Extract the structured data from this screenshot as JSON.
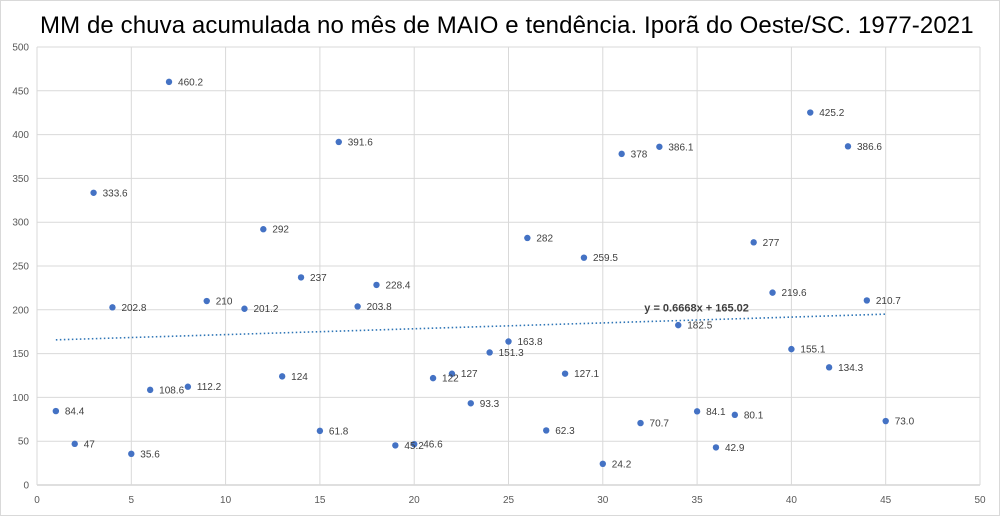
{
  "chart_data": {
    "type": "scatter",
    "title": "MM de chuva acumulada no mês de MAIO e tendência. Iporã do Oeste/SC. 1977-2021",
    "xlabel": "",
    "ylabel": "",
    "xlim": [
      0,
      50
    ],
    "ylim": [
      0,
      500
    ],
    "x_ticks": [
      0,
      5,
      10,
      15,
      20,
      25,
      30,
      35,
      40,
      45,
      50
    ],
    "y_ticks": [
      0,
      50,
      100,
      150,
      200,
      250,
      300,
      350,
      400,
      450,
      500
    ],
    "grid": true,
    "series": [
      {
        "name": "MM de chuva",
        "color": "#4472c4",
        "points": [
          {
            "x": 1,
            "y": 84.4,
            "label": "84.4"
          },
          {
            "x": 2,
            "y": 47,
            "label": "47"
          },
          {
            "x": 3,
            "y": 333.6,
            "label": "333.6"
          },
          {
            "x": 4,
            "y": 202.8,
            "label": "202.8"
          },
          {
            "x": 5,
            "y": 35.6,
            "label": "35.6"
          },
          {
            "x": 6,
            "y": 108.6,
            "label": "108.6"
          },
          {
            "x": 7,
            "y": 460.2,
            "label": "460.2"
          },
          {
            "x": 8,
            "y": 112.2,
            "label": "112.2"
          },
          {
            "x": 9,
            "y": 210,
            "label": "210"
          },
          {
            "x": 11,
            "y": 201.2,
            "label": "201.2"
          },
          {
            "x": 12,
            "y": 292,
            "label": "292"
          },
          {
            "x": 13,
            "y": 124,
            "label": "124"
          },
          {
            "x": 14,
            "y": 237,
            "label": "237"
          },
          {
            "x": 15,
            "y": 61.8,
            "label": "61.8"
          },
          {
            "x": 16,
            "y": 391.6,
            "label": "391.6"
          },
          {
            "x": 17,
            "y": 203.8,
            "label": "203.8"
          },
          {
            "x": 18,
            "y": 228.4,
            "label": "228.4"
          },
          {
            "x": 19,
            "y": 45.2,
            "label": "45.2"
          },
          {
            "x": 20,
            "y": 46.6,
            "label": "46.6"
          },
          {
            "x": 21,
            "y": 122,
            "label": "122"
          },
          {
            "x": 22,
            "y": 127,
            "label": "127"
          },
          {
            "x": 23,
            "y": 93.3,
            "label": "93.3"
          },
          {
            "x": 24,
            "y": 151.3,
            "label": "151.3"
          },
          {
            "x": 25,
            "y": 163.8,
            "label": "163.8"
          },
          {
            "x": 26,
            "y": 282,
            "label": "282"
          },
          {
            "x": 27,
            "y": 62.3,
            "label": "62.3"
          },
          {
            "x": 28,
            "y": 127.1,
            "label": "127.1"
          },
          {
            "x": 29,
            "y": 259.5,
            "label": "259.5"
          },
          {
            "x": 30,
            "y": 24.2,
            "label": "24.2"
          },
          {
            "x": 31,
            "y": 378,
            "label": "378"
          },
          {
            "x": 32,
            "y": 70.7,
            "label": "70.7"
          },
          {
            "x": 33,
            "y": 386.1,
            "label": "386.1"
          },
          {
            "x": 34,
            "y": 182.5,
            "label": "182.5"
          },
          {
            "x": 35,
            "y": 84.1,
            "label": "84.1"
          },
          {
            "x": 36,
            "y": 42.9,
            "label": "42.9"
          },
          {
            "x": 37,
            "y": 80.1,
            "label": "80.1"
          },
          {
            "x": 38,
            "y": 277,
            "label": "277"
          },
          {
            "x": 39,
            "y": 219.6,
            "label": "219.6"
          },
          {
            "x": 40,
            "y": 155.1,
            "label": "155.1"
          },
          {
            "x": 41,
            "y": 425.2,
            "label": "425.2"
          },
          {
            "x": 42,
            "y": 134.3,
            "label": "134.3"
          },
          {
            "x": 43,
            "y": 386.6,
            "label": "386.6"
          },
          {
            "x": 44,
            "y": 210.7,
            "label": "210.7"
          },
          {
            "x": 45,
            "y": 73.0,
            "label": "73.0"
          }
        ]
      }
    ],
    "trendline": {
      "type": "linear",
      "slope": 0.6668,
      "intercept": 165.02,
      "x_range": [
        1,
        45
      ],
      "color": "#2e75b6",
      "equation_label": "y = 0.6668x + 165.02"
    }
  }
}
